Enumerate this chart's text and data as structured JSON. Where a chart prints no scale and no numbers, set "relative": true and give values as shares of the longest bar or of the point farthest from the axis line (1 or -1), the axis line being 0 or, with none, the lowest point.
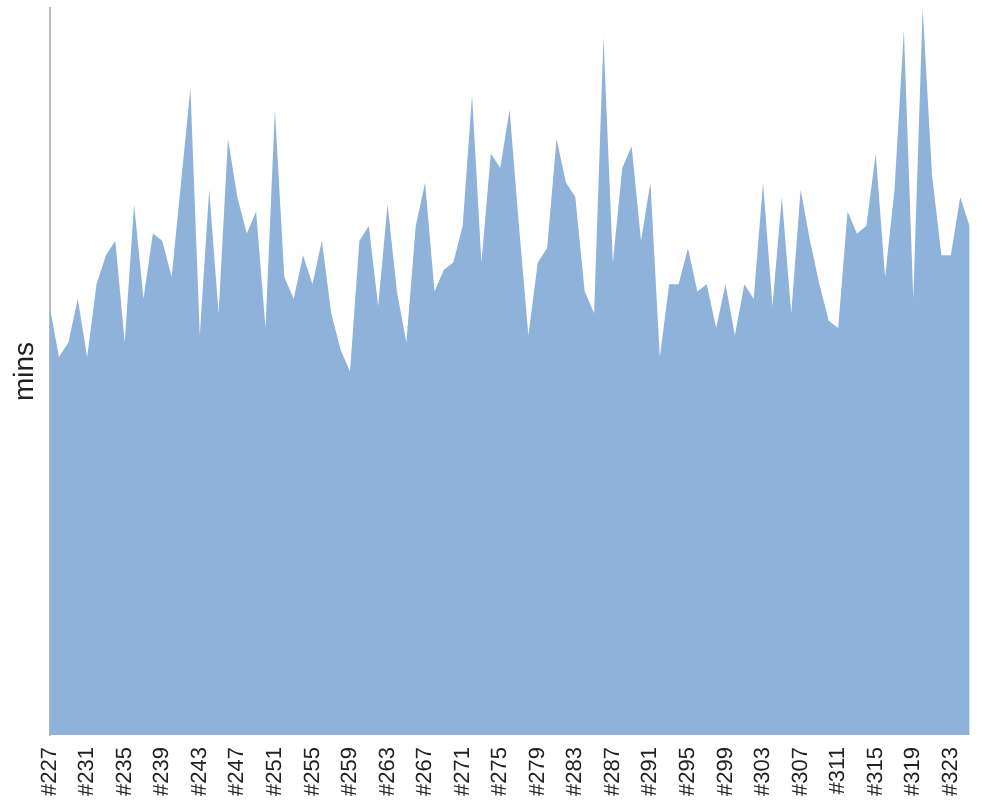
{
  "chart_data": {
    "type": "area",
    "ylabel": "mins",
    "relative": true,
    "grid": false,
    "legend": false,
    "categories": [
      "#227",
      null,
      null,
      null,
      "#231",
      null,
      null,
      null,
      "#235",
      null,
      null,
      null,
      "#239",
      null,
      null,
      null,
      "#243",
      null,
      null,
      null,
      "#247",
      null,
      null,
      null,
      "#251",
      null,
      null,
      null,
      "#255",
      null,
      null,
      null,
      "#259",
      null,
      null,
      null,
      "#263",
      null,
      null,
      null,
      "#267",
      null,
      null,
      null,
      "#271",
      null,
      null,
      null,
      "#275",
      null,
      null,
      null,
      "#279",
      null,
      null,
      null,
      "#283",
      null,
      null,
      null,
      "#287",
      null,
      null,
      null,
      "#291",
      null,
      null,
      null,
      "#295",
      null,
      null,
      null,
      "#299",
      null,
      null,
      null,
      "#303",
      null,
      null,
      null,
      "#307",
      null,
      null,
      null,
      "#311",
      null,
      null,
      null,
      "#315",
      null,
      null,
      null,
      "#319",
      null,
      null,
      null,
      "#323",
      null,
      null
    ],
    "series": [
      {
        "color": "#8fb2db",
        "values": [
          0.59,
          0.52,
          0.54,
          0.6,
          0.52,
          0.62,
          0.66,
          0.68,
          0.54,
          0.73,
          0.6,
          0.69,
          0.68,
          0.63,
          0.76,
          0.89,
          0.55,
          0.75,
          0.58,
          0.82,
          0.74,
          0.69,
          0.72,
          0.56,
          0.86,
          0.63,
          0.6,
          0.66,
          0.62,
          0.68,
          0.58,
          0.53,
          0.5,
          0.68,
          0.7,
          0.59,
          0.73,
          0.61,
          0.54,
          0.7,
          0.76,
          0.61,
          0.64,
          0.65,
          0.7,
          0.88,
          0.65,
          0.8,
          0.78,
          0.86,
          0.7,
          0.55,
          0.65,
          0.67,
          0.82,
          0.76,
          0.74,
          0.61,
          0.58,
          0.96,
          0.65,
          0.78,
          0.81,
          0.68,
          0.76,
          0.52,
          0.62,
          0.62,
          0.67,
          0.61,
          0.62,
          0.56,
          0.62,
          0.55,
          0.62,
          0.6,
          0.76,
          0.59,
          0.74,
          0.58,
          0.75,
          0.68,
          0.62,
          0.57,
          0.56,
          0.72,
          0.69,
          0.7,
          0.8,
          0.63,
          0.75,
          0.97,
          0.6,
          1,
          0.77,
          0.66,
          0.66,
          0.74,
          0.7
        ]
      }
    ]
  }
}
